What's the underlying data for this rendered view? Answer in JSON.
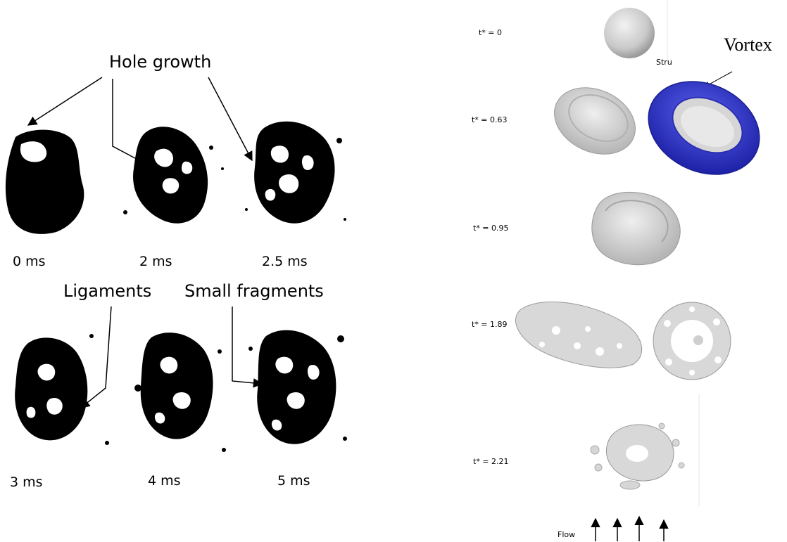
{
  "left_panel": {
    "annotations": {
      "hole_growth": "Hole growth",
      "ligaments": "Ligaments",
      "small_fragments": "Small fragments"
    },
    "times_top": [
      "0 ms",
      "2 ms",
      "2.5 ms"
    ],
    "times_bottom": [
      "3 ms",
      "4 ms",
      "5 ms"
    ]
  },
  "right_panel": {
    "time_labels": [
      "t* = 0",
      "t* = 0.63",
      "t* = 0.95",
      "t* = 1.89",
      "t* = 2.21"
    ],
    "vortex_label": "Vortex",
    "structure_label_partial": "Stru",
    "flow_label": "Flow"
  },
  "colors": {
    "ink": "#000000",
    "surface": "#d9d9d9",
    "surface_shade": "#a8a8a8",
    "vortex": "#3a3fd0"
  }
}
